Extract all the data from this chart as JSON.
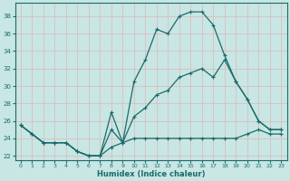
{
  "xlabel": "Humidex (Indice chaleur)",
  "background_color": "#c8e6e3",
  "grid_color": "#dbb8b8",
  "line_color": "#1a6b6b",
  "xlim": [
    -0.5,
    23.5
  ],
  "ylim": [
    21.5,
    39.5
  ],
  "xticks": [
    0,
    1,
    2,
    3,
    4,
    5,
    6,
    7,
    8,
    9,
    10,
    11,
    12,
    13,
    14,
    15,
    16,
    17,
    18,
    19,
    20,
    21,
    22,
    23
  ],
  "yticks": [
    22,
    24,
    26,
    28,
    30,
    32,
    34,
    36,
    38
  ],
  "line_max_x": [
    0,
    1,
    2,
    3,
    4,
    5,
    6,
    7,
    8,
    9,
    10,
    11,
    12,
    13,
    14,
    15,
    16,
    17,
    18,
    19,
    20,
    21,
    22,
    23
  ],
  "line_max_y": [
    25.5,
    24.5,
    23.5,
    23.5,
    23.5,
    22.5,
    22.0,
    22.0,
    27.0,
    23.5,
    30.5,
    33.0,
    36.5,
    36.0,
    38.0,
    38.5,
    38.5,
    37.0,
    33.5,
    30.5,
    28.5,
    26.0,
    25.0,
    25.0
  ],
  "line_min_x": [
    0,
    1,
    2,
    3,
    4,
    5,
    6,
    7,
    8,
    9,
    10,
    11,
    12,
    13,
    14,
    15,
    16,
    17,
    18,
    19,
    20,
    21,
    22,
    23
  ],
  "line_min_y": [
    25.5,
    24.5,
    23.5,
    23.5,
    23.5,
    22.5,
    22.0,
    22.0,
    23.0,
    23.5,
    24.0,
    24.0,
    24.0,
    24.0,
    24.0,
    24.0,
    24.0,
    24.0,
    24.0,
    24.0,
    24.5,
    25.0,
    24.5,
    24.5
  ],
  "line_avg_x": [
    0,
    1,
    2,
    3,
    4,
    5,
    6,
    7,
    8,
    9,
    10,
    11,
    12,
    13,
    14,
    15,
    16,
    17,
    18,
    19,
    20,
    21,
    22,
    23
  ],
  "line_avg_y": [
    25.5,
    24.5,
    23.5,
    23.5,
    23.5,
    22.5,
    22.0,
    22.0,
    25.0,
    23.5,
    26.5,
    27.5,
    29.0,
    29.5,
    31.0,
    31.5,
    32.0,
    31.0,
    33.0,
    30.5,
    28.5,
    26.0,
    25.0,
    25.0
  ]
}
